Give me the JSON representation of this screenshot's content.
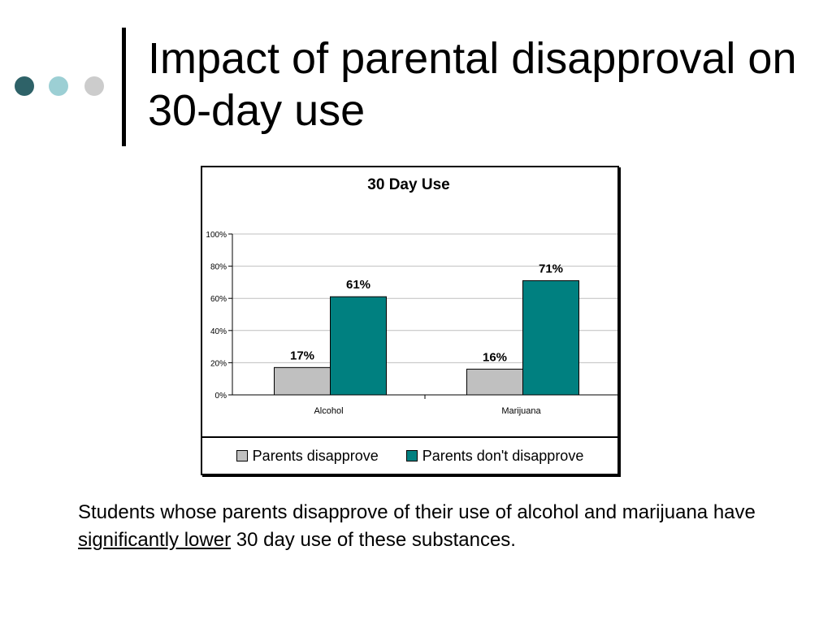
{
  "slide": {
    "title": "Impact of parental disapproval on 30-day use",
    "decor_colors": [
      "#2e6268",
      "#9ccfd4",
      "#cccccc"
    ],
    "caption_part1": "Students whose parents disapprove of their use of alcohol and marijuana have ",
    "caption_underlined": "significantly lower",
    "caption_part2": " 30 day use of these substances."
  },
  "chart_data": {
    "type": "bar",
    "title": "30 Day Use",
    "categories": [
      "Alcohol",
      "Marijuana"
    ],
    "series": [
      {
        "name": "Parents disapprove",
        "values": [
          17,
          16
        ],
        "color": "#c0c0c0"
      },
      {
        "name": "Parents don't disapprove",
        "values": [
          61,
          71
        ],
        "color": "#008080"
      }
    ],
    "data_labels": [
      [
        "17%",
        "16%"
      ],
      [
        "61%",
        "71%"
      ]
    ],
    "ylim": [
      0,
      100
    ],
    "yticks": [
      0,
      20,
      40,
      60,
      80,
      100
    ],
    "ytick_labels": [
      "0%",
      "20%",
      "40%",
      "60%",
      "80%",
      "100%"
    ],
    "xlabel": "",
    "ylabel": "",
    "grid": true,
    "legend": "bottom"
  }
}
